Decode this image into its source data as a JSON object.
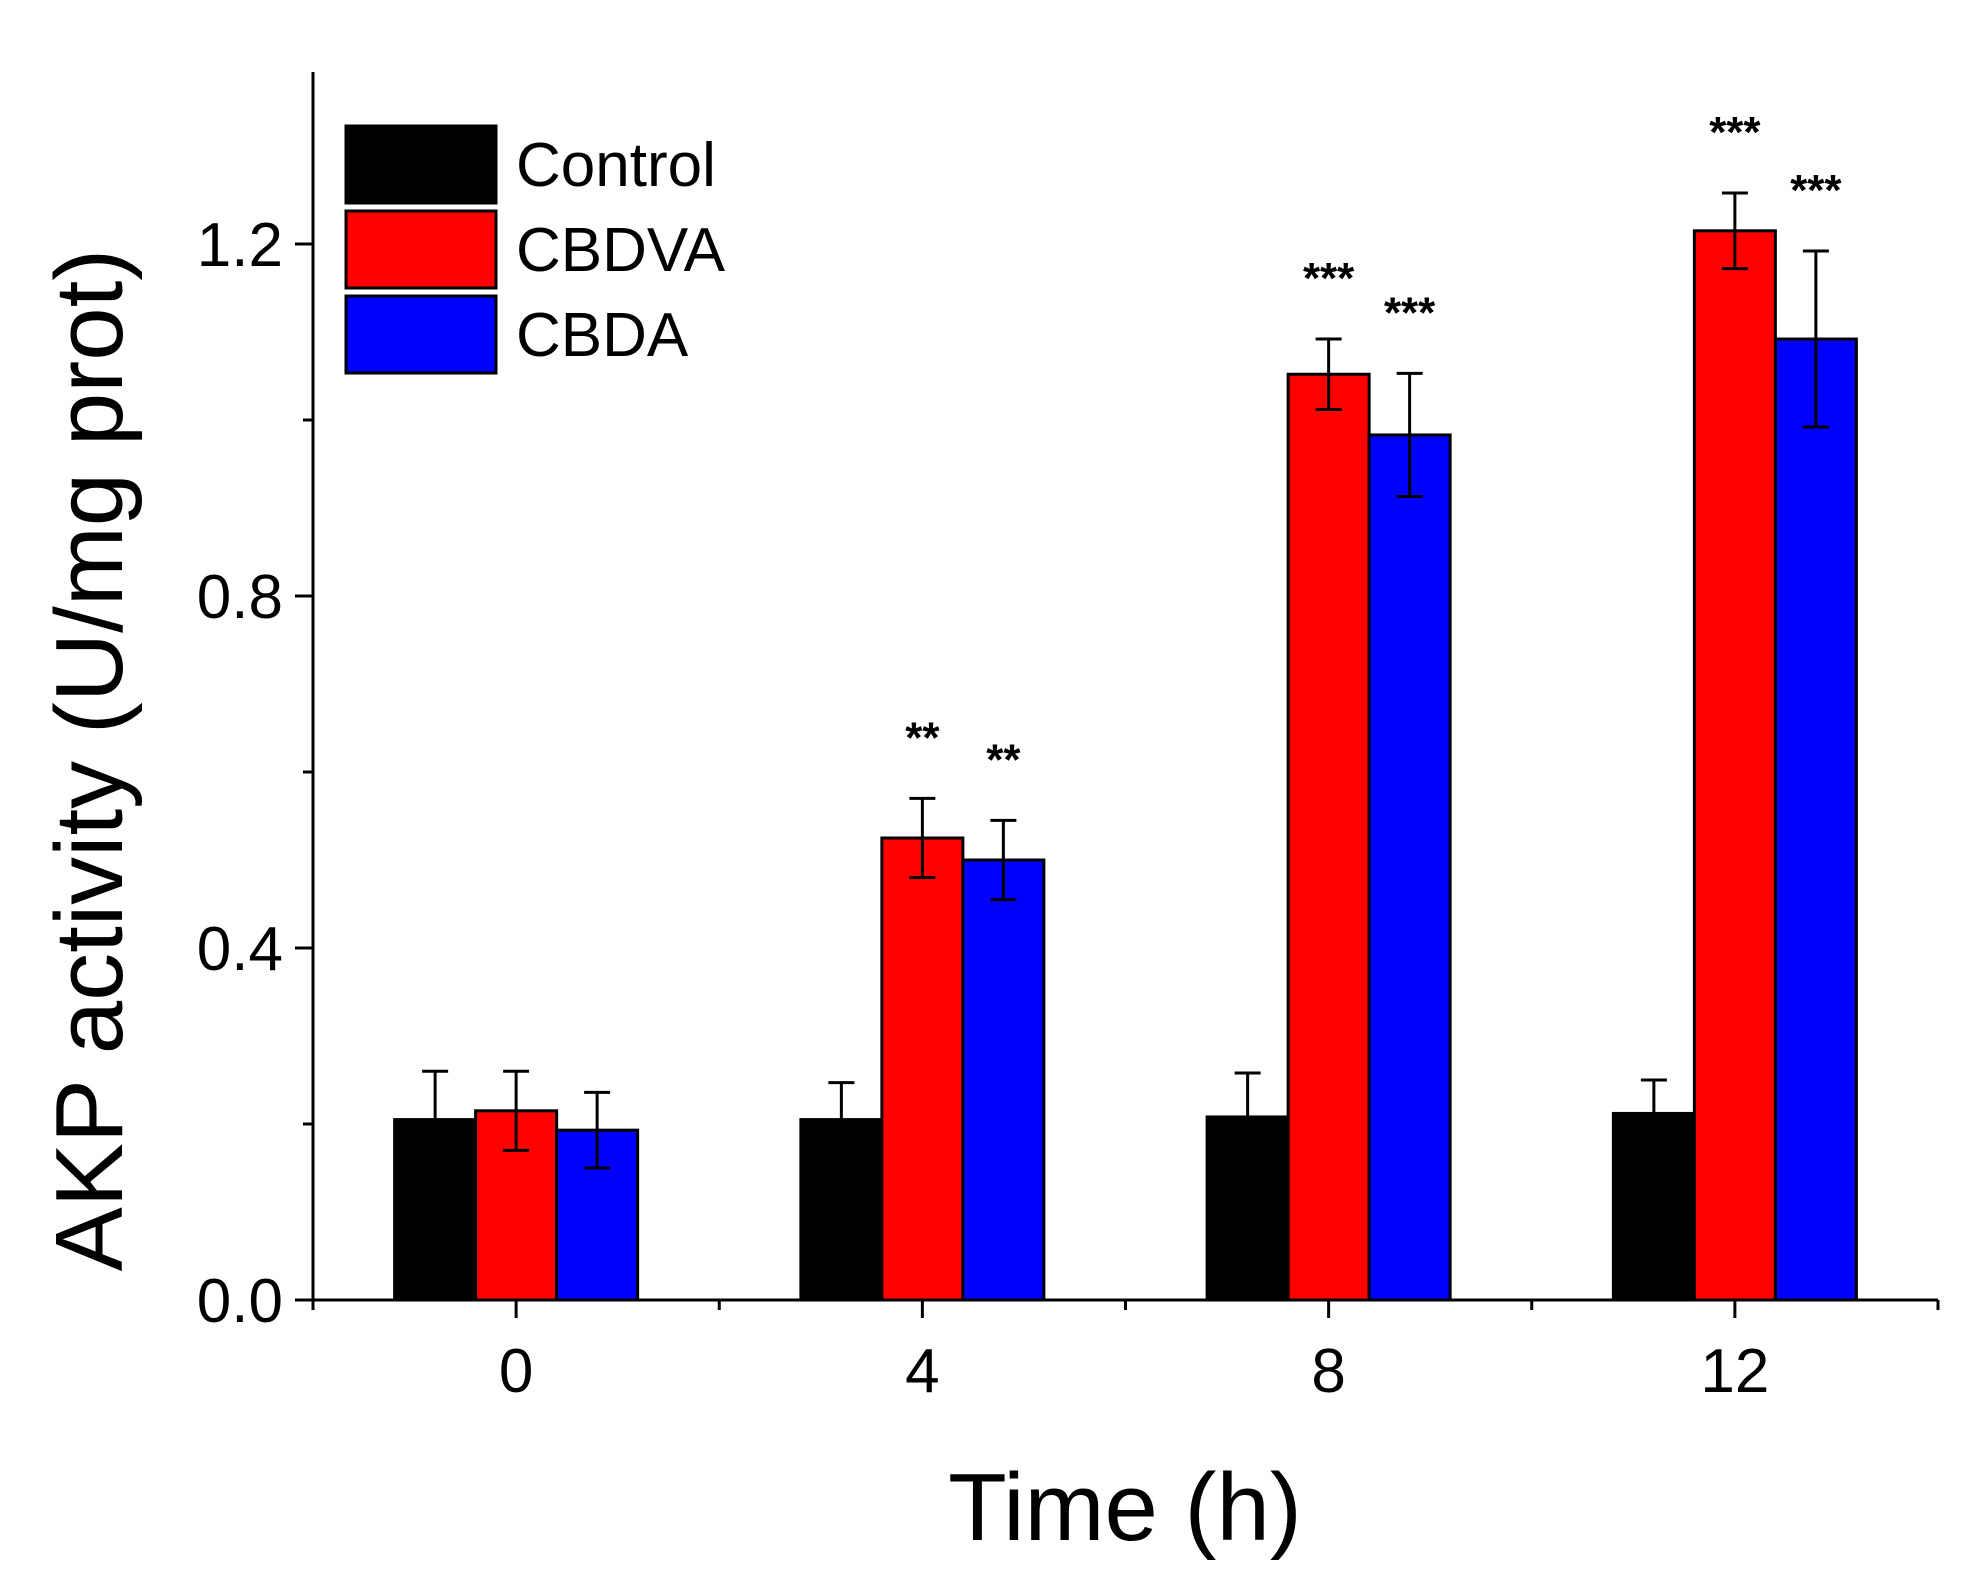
{
  "chart_data": {
    "type": "bar",
    "xlabel": "Time (h)",
    "ylabel": "AKP activity (U/mg prot)",
    "categories": [
      "0",
      "4",
      "8",
      "12"
    ],
    "ylim": [
      0,
      1.4
    ],
    "yticks": [
      0.0,
      0.4,
      0.8,
      1.2
    ],
    "ytick_labels": [
      "0.0",
      "0.4",
      "0.8",
      "1.2"
    ],
    "legend_position": "top-left",
    "series": [
      {
        "name": "Control",
        "color": "#000000",
        "values": [
          0.205,
          0.205,
          0.208,
          0.212
        ],
        "errors": [
          0.055,
          0.042,
          0.05,
          0.038
        ],
        "significance": [
          "",
          "",
          "",
          ""
        ]
      },
      {
        "name": "CBDVA",
        "color": "#ff0000",
        "values": [
          0.215,
          0.525,
          1.052,
          1.215
        ],
        "errors": [
          0.045,
          0.045,
          0.04,
          0.043
        ],
        "significance": [
          "",
          "**",
          "***",
          "***"
        ]
      },
      {
        "name": "CBDA",
        "color": "#0000ff",
        "values": [
          0.193,
          0.5,
          0.983,
          1.092
        ],
        "errors": [
          0.043,
          0.045,
          0.07,
          0.1
        ],
        "significance": [
          "",
          "**",
          "***",
          "***"
        ]
      }
    ]
  }
}
